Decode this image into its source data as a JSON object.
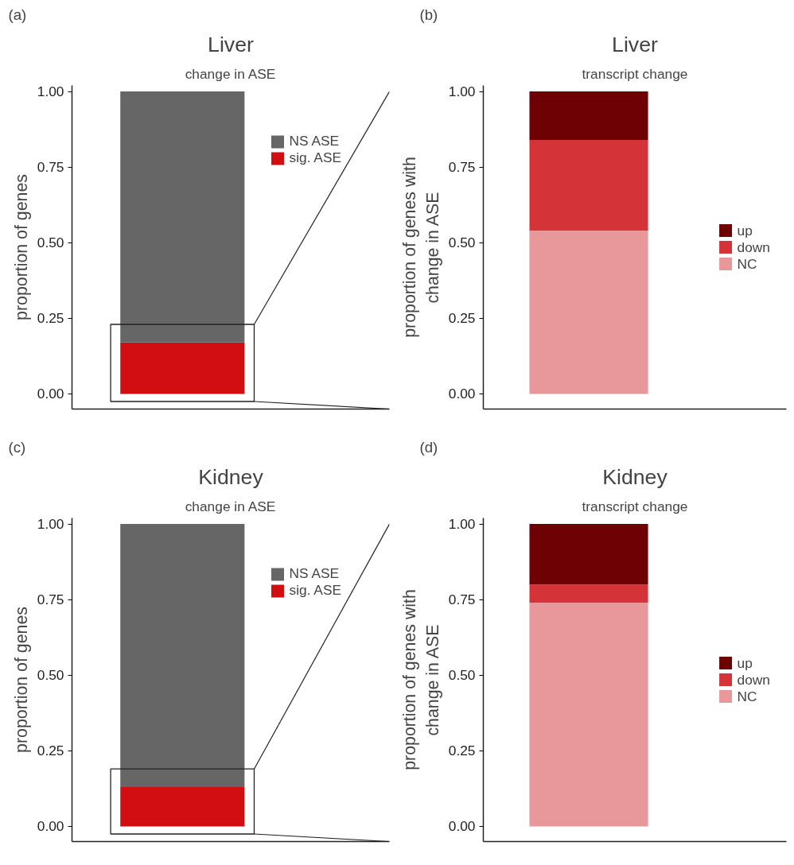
{
  "chart_data": [
    {
      "type": "bar",
      "stacked": true,
      "title": "Liver",
      "subtitle": "change in ASE",
      "ylabel": "proportion of genes",
      "annotations": [
        "(a)"
      ],
      "categories": [
        null
      ],
      "ylim": [
        -0.05,
        1.0
      ],
      "yticks": [
        {
          "value": 0,
          "label": "0.00"
        },
        {
          "value": 0.25,
          "label": "0.25"
        },
        {
          "value": 0.5,
          "label": "0.50"
        },
        {
          "value": 0.75,
          "label": "0.75"
        },
        {
          "value": 1,
          "label": "1.00"
        }
      ],
      "tick_labels": "y",
      "legend": "top right",
      "grid": false,
      "series": [
        {
          "name": "sig. ASE",
          "color": "#d20e12",
          "values": [
            0.17
          ]
        },
        {
          "name": "NS ASE",
          "color": "#666666",
          "values": [
            0.83
          ]
        }
      ]
    },
    {
      "type": "bar",
      "stacked": true,
      "title": "Liver",
      "subtitle": "transcript change",
      "ylabel": "proportion of genes with\nchange in ASE",
      "annotations": [
        "(b)"
      ],
      "categories": [
        null
      ],
      "ylim": [
        -0.05,
        1.0
      ],
      "yticks": [
        {
          "value": 0,
          "label": "0.00"
        },
        {
          "value": 0.25,
          "label": "0.25"
        },
        {
          "value": 0.5,
          "label": "0.50"
        },
        {
          "value": 0.75,
          "label": "0.75"
        },
        {
          "value": 1,
          "label": "1.00"
        }
      ],
      "tick_labels": "y",
      "legend": "right",
      "grid": false,
      "series": [
        {
          "name": "NC",
          "color": "#e8989a",
          "values": [
            0.54
          ]
        },
        {
          "name": "down",
          "color": "#d43338",
          "values": [
            0.3
          ]
        },
        {
          "name": "up",
          "color": "#6d0104",
          "values": [
            0.16
          ]
        }
      ]
    },
    {
      "type": "bar",
      "stacked": true,
      "title": "Kidney",
      "subtitle": "change in ASE",
      "ylabel": "proportion of genes",
      "annotations": [
        "(c)"
      ],
      "categories": [
        null
      ],
      "ylim": [
        -0.05,
        1.0
      ],
      "yticks": [
        {
          "value": 0,
          "label": "0.00"
        },
        {
          "value": 0.25,
          "label": "0.25"
        },
        {
          "value": 0.5,
          "label": "0.50"
        },
        {
          "value": 0.75,
          "label": "0.75"
        },
        {
          "value": 1,
          "label": "1.00"
        }
      ],
      "tick_labels": "y",
      "legend": "top right",
      "grid": false,
      "series": [
        {
          "name": "sig. ASE",
          "color": "#d20e12",
          "values": [
            0.13
          ]
        },
        {
          "name": "NS ASE",
          "color": "#666666",
          "values": [
            0.87
          ]
        }
      ]
    },
    {
      "type": "bar",
      "stacked": true,
      "title": "Kidney",
      "subtitle": "transcript change",
      "ylabel": "proportion of genes with\nchange in ASE",
      "annotations": [
        "(d)"
      ],
      "categories": [
        null
      ],
      "ylim": [
        -0.05,
        1.0
      ],
      "yticks": [
        {
          "value": 0,
          "label": "0.00"
        },
        {
          "value": 0.25,
          "label": "0.25"
        },
        {
          "value": 0.5,
          "label": "0.50"
        },
        {
          "value": 0.75,
          "label": "0.75"
        },
        {
          "value": 1,
          "label": "1.00"
        }
      ],
      "tick_labels": "y",
      "legend": "right",
      "grid": false,
      "series": [
        {
          "name": "NC",
          "color": "#e8989a",
          "values": [
            0.74
          ]
        },
        {
          "name": "down",
          "color": "#d43338",
          "values": [
            0.06
          ]
        },
        {
          "name": "up",
          "color": "#6d0104",
          "values": [
            0.2
          ]
        }
      ]
    }
  ]
}
